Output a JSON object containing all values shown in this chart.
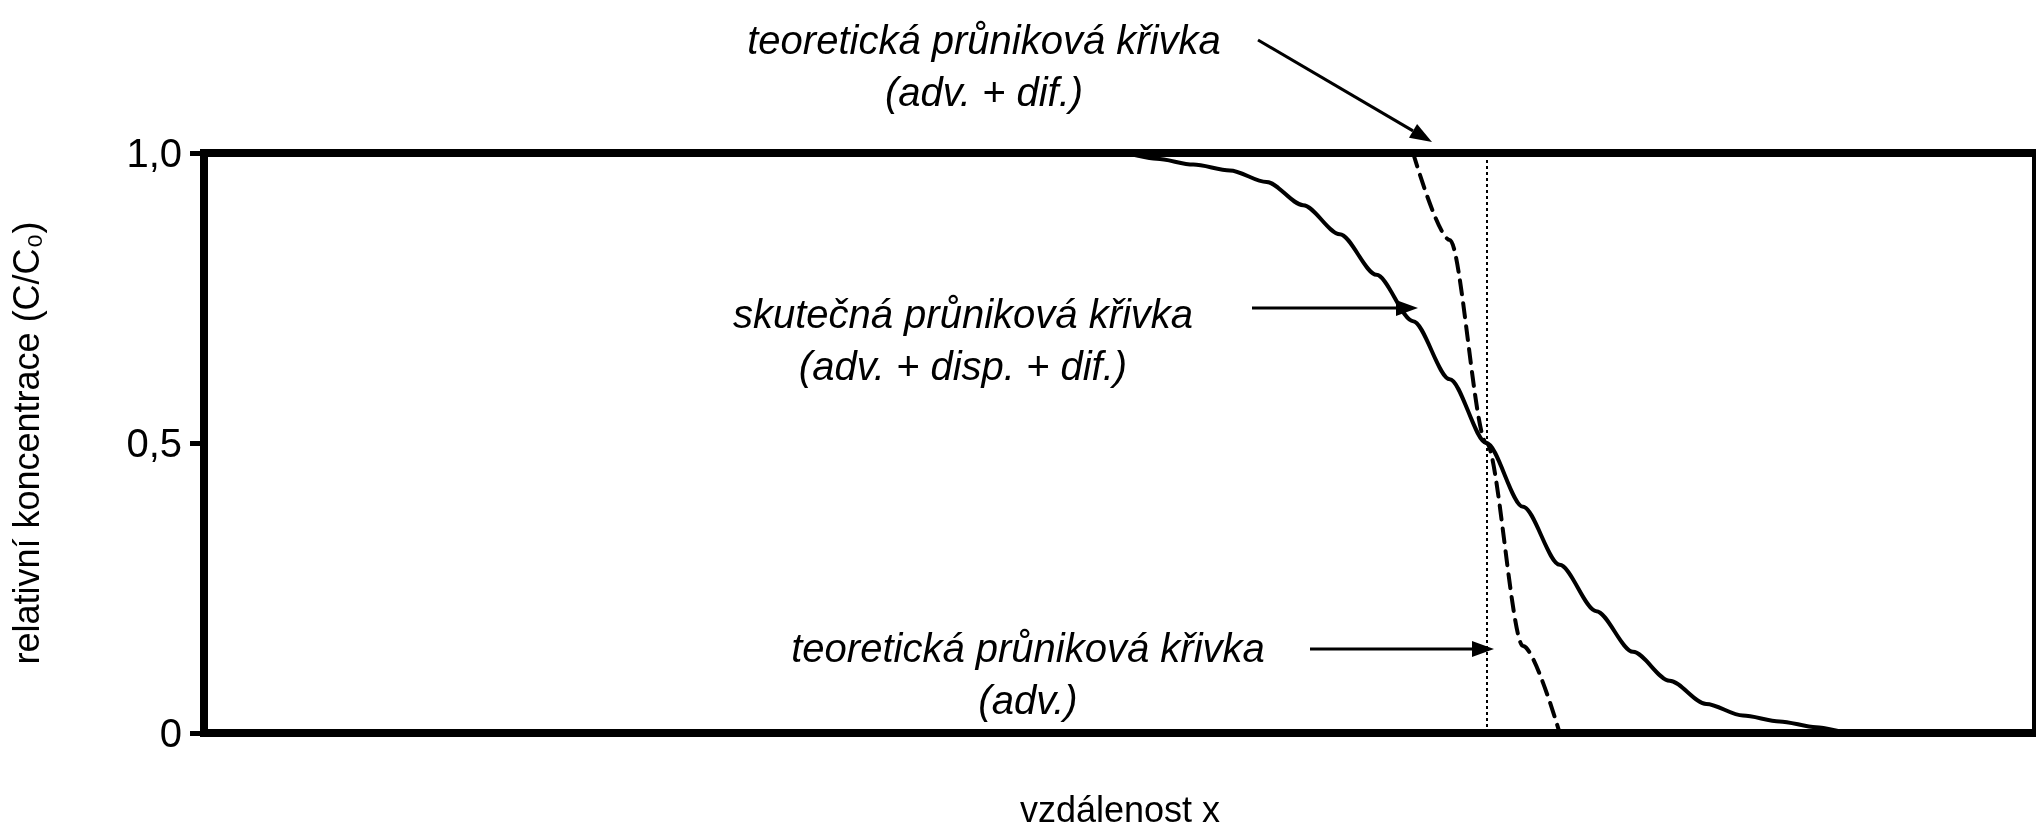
{
  "chart_data": {
    "type": "line",
    "xlabel": "vzdálenost x",
    "ylabel": "relativní koncentrace (C/C₀)",
    "categories": [
      null,
      null,
      null,
      null,
      null,
      null,
      null,
      null,
      null,
      null,
      null,
      null,
      null,
      null,
      null,
      null,
      null,
      null,
      null,
      null,
      null,
      null,
      null,
      null,
      null,
      null,
      null,
      null,
      null,
      null,
      null,
      null,
      null,
      null,
      null,
      null,
      null,
      null,
      null,
      null,
      null,
      null,
      null,
      null,
      null,
      null,
      null,
      null,
      null,
      null,
      null
    ],
    "series": [
      {
        "color": "#000000",
        "line_style": "solid",
        "values": [
          1,
          1,
          1,
          1,
          1,
          1,
          1,
          1,
          1,
          1,
          1,
          1,
          1,
          1,
          1,
          1,
          1,
          1,
          1,
          1,
          1,
          1,
          1,
          1,
          1,
          1,
          0.99,
          0.98,
          0.97,
          0.95,
          0.91,
          0.86,
          0.79,
          0.71,
          0.61,
          0.5,
          0.39,
          0.29,
          0.21,
          0.14,
          0.09,
          0.05,
          0.03,
          0.02,
          0.01,
          0,
          0,
          0,
          0,
          0,
          0
        ]
      },
      {
        "color": "#000000",
        "line_style": "dashed",
        "values": [
          null,
          null,
          null,
          null,
          null,
          null,
          null,
          null,
          null,
          null,
          null,
          null,
          null,
          null,
          null,
          null,
          null,
          null,
          null,
          null,
          null,
          null,
          null,
          null,
          null,
          null,
          null,
          null,
          null,
          null,
          null,
          null,
          null,
          1,
          0.85,
          0.5,
          0.15,
          0,
          null,
          null,
          null,
          null,
          null,
          null,
          null,
          null,
          null,
          null,
          null,
          null,
          null
        ]
      }
    ],
    "ylim": [
      0,
      1
    ],
    "yticks": [
      0,
      {
        "value": 0.5,
        "label": "0,5"
      },
      {
        "value": 1,
        "label": "1,0"
      }
    ],
    "marker": "none",
    "grid": false,
    "tick_labels": "y",
    "annotations": [
      "teoretická průniková křivka\n(adv. + dif.)",
      "skutečná průniková křivka\n(adv. + disp. + dif.)",
      "teoretická průniková křivka\n(adv.)"
    ]
  }
}
